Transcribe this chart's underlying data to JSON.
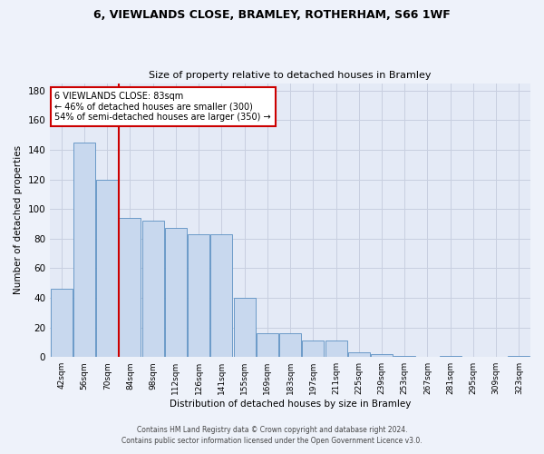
{
  "title1": "6, VIEWLANDS CLOSE, BRAMLEY, ROTHERHAM, S66 1WF",
  "title2": "Size of property relative to detached houses in Bramley",
  "xlabel": "Distribution of detached houses by size in Bramley",
  "ylabel": "Number of detached properties",
  "categories": [
    "42sqm",
    "56sqm",
    "70sqm",
    "84sqm",
    "98sqm",
    "112sqm",
    "126sqm",
    "141sqm",
    "155sqm",
    "169sqm",
    "183sqm",
    "197sqm",
    "211sqm",
    "225sqm",
    "239sqm",
    "253sqm",
    "267sqm",
    "281sqm",
    "295sqm",
    "309sqm",
    "323sqm"
  ],
  "values": [
    46,
    145,
    120,
    94,
    92,
    87,
    83,
    83,
    40,
    16,
    16,
    11,
    11,
    3,
    2,
    1,
    0,
    1,
    0,
    0,
    1
  ],
  "bar_color": "#c8d8ee",
  "bar_edge_color": "#5a8fc2",
  "vline_color": "#cc0000",
  "vline_x_index": 2.5,
  "annotation_text": "6 VIEWLANDS CLOSE: 83sqm\n← 46% of detached houses are smaller (300)\n54% of semi-detached houses are larger (350) →",
  "annotation_box_color": "white",
  "annotation_box_edge": "#cc0000",
  "footer1": "Contains HM Land Registry data © Crown copyright and database right 2024.",
  "footer2": "Contains public sector information licensed under the Open Government Licence v3.0.",
  "yticks": [
    0,
    20,
    40,
    60,
    80,
    100,
    120,
    140,
    160,
    180
  ],
  "ylim": [
    0,
    185
  ],
  "bg_color": "#eef2fa",
  "plot_bg_color": "#e4eaf6",
  "grid_color": "#c8cfe0"
}
